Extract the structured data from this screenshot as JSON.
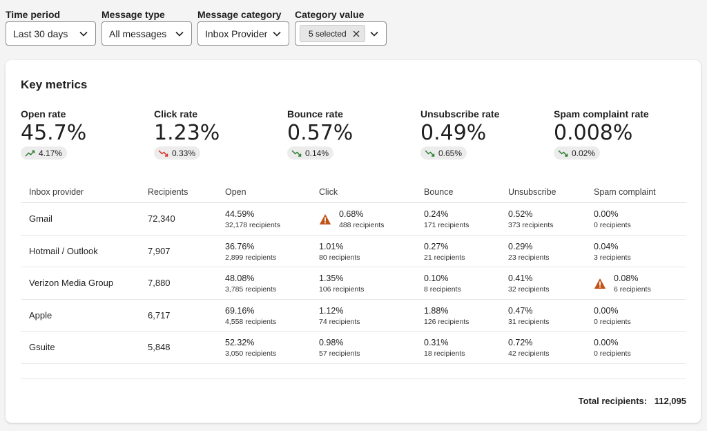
{
  "filters": [
    {
      "label": "Time period",
      "value": "Last 30 days"
    },
    {
      "label": "Message type",
      "value": "All messages"
    },
    {
      "label": "Message category",
      "value": "Inbox Provider"
    },
    {
      "label": "Category value",
      "chip": "5 selected"
    }
  ],
  "card": {
    "title": "Key metrics"
  },
  "metrics": [
    {
      "label": "Open rate",
      "value": "45.7%",
      "delta": "4.17%",
      "trend": "up",
      "trend_color": "#2e7d32"
    },
    {
      "label": "Click rate",
      "value": "1.23%",
      "delta": "0.33%",
      "trend": "down",
      "trend_color": "#d93025"
    },
    {
      "label": "Bounce rate",
      "value": "0.57%",
      "delta": "0.14%",
      "trend": "down",
      "trend_color": "#2e7d32"
    },
    {
      "label": "Unsubscribe rate",
      "value": "0.49%",
      "delta": "0.65%",
      "trend": "down",
      "trend_color": "#2e7d32"
    },
    {
      "label": "Spam complaint rate",
      "value": "0.008%",
      "delta": "0.02%",
      "trend": "down",
      "trend_color": "#2e7d32"
    }
  ],
  "table": {
    "headers": [
      "Inbox provider",
      "Recipients",
      "Open",
      "Click",
      "Bounce",
      "Unsubscribe",
      "Spam complaint"
    ],
    "rows": [
      {
        "provider": "Gmail",
        "recipients": "72,340",
        "open": {
          "rate": "44.59%",
          "count": "32,178 recipients"
        },
        "click": {
          "rate": "0.68%",
          "count": "488 recipients",
          "warning": true
        },
        "bounce": {
          "rate": "0.24%",
          "count": "171 recipients"
        },
        "unsubscribe": {
          "rate": "0.52%",
          "count": "373 recipients"
        },
        "spam": {
          "rate": "0.00%",
          "count": "0 recipients"
        }
      },
      {
        "provider": "Hotmail / Outlook",
        "recipients": "7,907",
        "open": {
          "rate": "36.76%",
          "count": "2,899 recipients"
        },
        "click": {
          "rate": "1.01%",
          "count": "80 recipients"
        },
        "bounce": {
          "rate": "0.27%",
          "count": "21 recipients"
        },
        "unsubscribe": {
          "rate": "0.29%",
          "count": "23 recipients"
        },
        "spam": {
          "rate": "0.04%",
          "count": "3 recipients"
        }
      },
      {
        "provider": "Verizon Media Group",
        "recipients": "7,880",
        "open": {
          "rate": "48.08%",
          "count": "3,785 recipients"
        },
        "click": {
          "rate": "1.35%",
          "count": "106 recipients"
        },
        "bounce": {
          "rate": "0.10%",
          "count": "8 recipients"
        },
        "unsubscribe": {
          "rate": "0.41%",
          "count": "32 recipients"
        },
        "spam": {
          "rate": "0.08%",
          "count": "6 recipients",
          "warning": true
        }
      },
      {
        "provider": "Apple",
        "recipients": "6,717",
        "open": {
          "rate": "69.16%",
          "count": "4,558 recipients"
        },
        "click": {
          "rate": "1.12%",
          "count": "74 recipients"
        },
        "bounce": {
          "rate": "1.88%",
          "count": "126 recipients"
        },
        "unsubscribe": {
          "rate": "0.47%",
          "count": "31 recipients"
        },
        "spam": {
          "rate": "0.00%",
          "count": "0 recipients"
        }
      },
      {
        "provider": "Gsuite",
        "recipients": "5,848",
        "open": {
          "rate": "52.32%",
          "count": "3,050 recipients"
        },
        "click": {
          "rate": "0.98%",
          "count": "57 recipients"
        },
        "bounce": {
          "rate": "0.31%",
          "count": "18 recipients"
        },
        "unsubscribe": {
          "rate": "0.72%",
          "count": "42 recipients"
        },
        "spam": {
          "rate": "0.00%",
          "count": "0 recipients"
        }
      }
    ]
  },
  "total": {
    "label": "Total recipients:",
    "value": "112,095"
  },
  "colors": {
    "warning": "#c0531a",
    "trend_up": "#2e7d32",
    "trend_down_bad": "#d93025"
  },
  "icons": {
    "dropdown": "chevron-down-icon",
    "chip_remove": "close-icon",
    "warning": "warning-icon",
    "trend_up": "trend-up-icon",
    "trend_down": "trend-down-icon"
  }
}
